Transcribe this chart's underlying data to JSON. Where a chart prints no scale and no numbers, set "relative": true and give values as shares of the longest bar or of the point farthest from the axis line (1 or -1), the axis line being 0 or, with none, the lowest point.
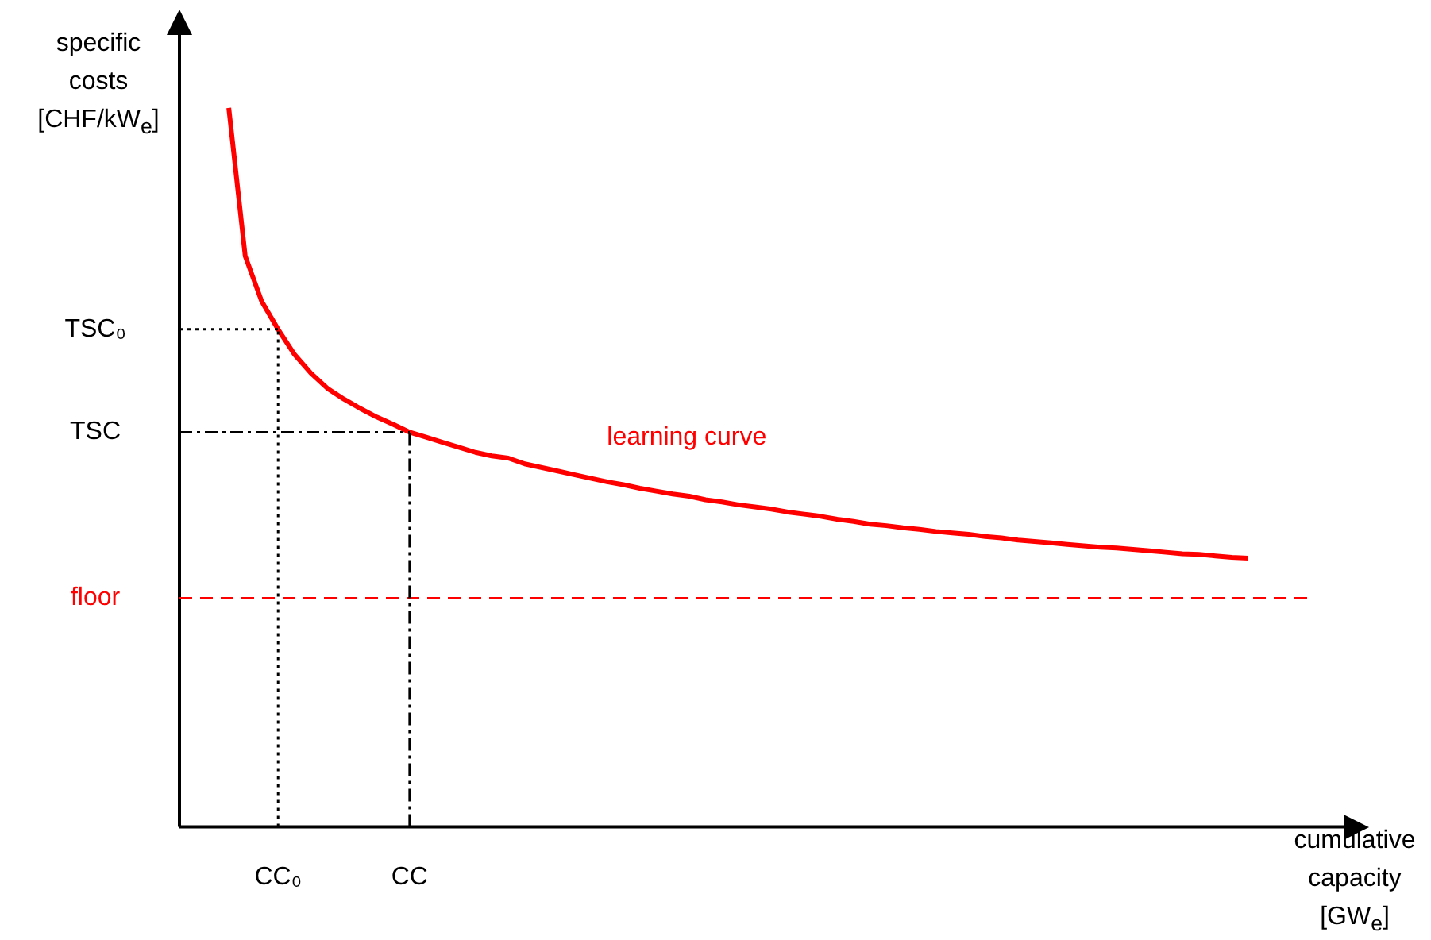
{
  "chart_data": {
    "type": "line",
    "relative": true,
    "xlabel": "cumulative capacity [GW$_{e}$]",
    "ylabel": "specific costs [CHF/kW$_{e}$]",
    "categories": [
      null,
      null,
      null,
      null,
      null,
      null,
      "CC₀",
      null,
      null,
      null,
      null,
      null,
      null,
      null,
      "CC",
      null,
      null,
      null,
      null,
      null,
      null,
      null,
      null,
      null,
      null,
      null,
      null,
      null,
      null,
      null,
      null,
      null,
      null,
      null,
      null,
      null,
      null,
      null,
      null,
      null,
      null,
      null,
      null,
      null,
      null,
      null,
      null,
      null,
      null,
      null,
      null,
      null,
      null,
      null,
      null,
      null,
      null,
      null,
      null,
      null,
      null,
      null,
      null,
      null,
      null,
      null,
      null,
      null,
      null,
      null,
      null,
      null
    ],
    "series": [
      {
        "name": "learning curve",
        "color": "#ff0000",
        "values": [
          null,
          null,
          null,
          1.0,
          0.794,
          0.731,
          0.692,
          0.657,
          0.631,
          0.61,
          0.595,
          0.582,
          0.57,
          0.56,
          0.549,
          0.542,
          0.535,
          0.528,
          0.521,
          0.516,
          0.513,
          0.505,
          0.5,
          0.495,
          0.49,
          0.485,
          0.48,
          0.476,
          0.471,
          0.467,
          0.463,
          0.46,
          0.455,
          0.452,
          0.448,
          0.445,
          0.442,
          0.438,
          0.435,
          0.432,
          0.428,
          0.425,
          0.421,
          0.419,
          0.416,
          0.414,
          0.411,
          0.409,
          0.407,
          0.404,
          0.402,
          0.399,
          0.397,
          0.395,
          0.393,
          0.391,
          0.389,
          0.388,
          0.386,
          0.384,
          0.382,
          0.38,
          0.379,
          0.377,
          0.375,
          0.374,
          null,
          null,
          null,
          null,
          null,
          null
        ]
      }
    ],
    "ref_lines": [
      {
        "axis": "y",
        "value": 0.318,
        "label": "floor",
        "color": "#ff0000",
        "line_style": "dashed"
      },
      {
        "axis": "y",
        "value": 0.692,
        "label": "TSC₀",
        "color": "#000000",
        "line_style": "dotted"
      },
      {
        "axis": "y",
        "value": 0.549,
        "label": "TSC",
        "color": "#000000",
        "line_style": "dashed"
      },
      {
        "axis": "x",
        "value": "CC₀",
        "color": "#000000",
        "line_style": "dotted"
      },
      {
        "axis": "x",
        "value": "CC",
        "color": "#000000",
        "line_style": "dashed"
      }
    ],
    "grid": false,
    "legend": false,
    "tick_labels": "x",
    "marker": "none",
    "line_style": "solid"
  }
}
